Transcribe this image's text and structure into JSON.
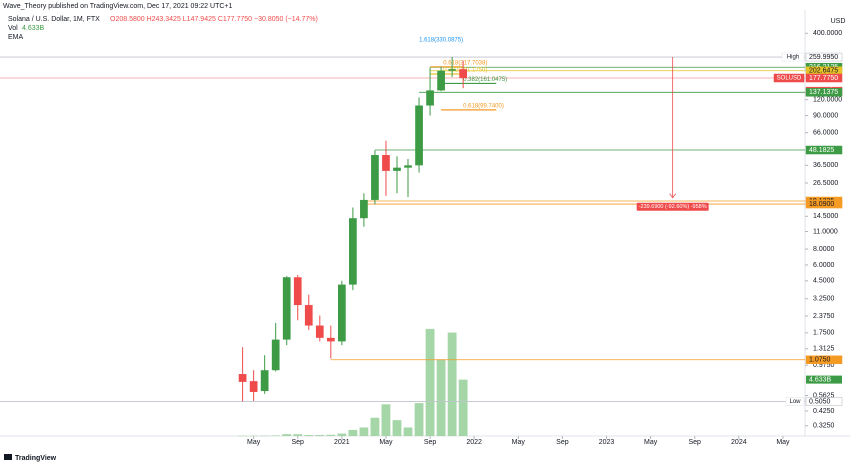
{
  "chart_data": {
    "type": "candlestick",
    "header": {
      "publisher": "Wave_Theory published on TradingView.com, Dec 17, 2021 09:22 UTC+1",
      "symbol": "Solana / U.S. Dollar, 1M, FTX",
      "ohlc": "O208.5800 H243.3425 L147.9425 C177.7750 −30.8050 (−14.77%)",
      "indicator": "EMA",
      "currency": "USD",
      "footer": "TradingView"
    },
    "x": [
      "2020-04",
      "2020-05",
      "2020-06",
      "2020-07",
      "2020-08",
      "2020-09",
      "2020-10",
      "2020-11",
      "2020-12",
      "2021-01",
      "2021-02",
      "2021-03",
      "2021-04",
      "2021-05",
      "2021-06",
      "2021-07",
      "2021-08",
      "2021-09",
      "2021-10",
      "2021-11",
      "2021-12"
    ],
    "open": [
      0.83,
      0.73,
      0.61,
      0.89,
      1.55,
      4.8,
      2.9,
      2.0,
      1.6,
      1.5,
      4.2,
      14,
      19.5,
      44,
      33,
      35,
      36.5,
      108,
      142,
      203,
      208.58
    ],
    "high": [
      1.35,
      0.89,
      1.17,
      2.1,
      4.9,
      5.0,
      3.5,
      2.4,
      2.0,
      4.5,
      17,
      22,
      48,
      57,
      43,
      41,
      125,
      215,
      218,
      259.995,
      243.3425
    ],
    "low": [
      0.505,
      0.51,
      0.58,
      0.87,
      1.4,
      2.2,
      1.85,
      1.5,
      1.1,
      1.4,
      3.8,
      12,
      18,
      21,
      22,
      20.5,
      32,
      90,
      140,
      181,
      147.9425
    ],
    "close": [
      0.72,
      0.6,
      0.89,
      1.55,
      4.8,
      2.9,
      2.0,
      1.6,
      1.5,
      4.2,
      14,
      19.5,
      44,
      33,
      35,
      36.5,
      108,
      142,
      203,
      208.58,
      177.775
    ],
    "up_color": "#3d9b45",
    "down_color": "#ef4b4b",
    "volume": {
      "name": "Vol",
      "values": [
        0.02,
        0.02,
        0.03,
        0.05,
        0.15,
        0.15,
        0.08,
        0.08,
        0.1,
        0.2,
        0.5,
        0.7,
        1.5,
        2.6,
        1.3,
        0.7,
        2.7,
        8.8,
        6.3,
        8.5,
        4.633
      ],
      "last_label": "4.633B",
      "color": "#a5d6a7",
      "axis": "y2"
    },
    "log_scale": true,
    "ylim": [
      0.27,
      610
    ],
    "y2lim": [
      0,
      35
    ],
    "yticks": [
      {
        "value": 400,
        "label": "400.0000"
      },
      {
        "value": 120,
        "label": "120.0000"
      },
      {
        "value": 90,
        "label": "90.0000"
      },
      {
        "value": 66,
        "label": "66.0000"
      },
      {
        "value": 36.5,
        "label": "36.5000"
      },
      {
        "value": 26.5,
        "label": "26.5000"
      },
      {
        "value": 14.5,
        "label": "14.5000"
      },
      {
        "value": 11,
        "label": "11.0000"
      },
      {
        "value": 8,
        "label": "8.0000"
      },
      {
        "value": 6,
        "label": "6.0000"
      },
      {
        "value": 4.5,
        "label": "4.5000"
      },
      {
        "value": 3.25,
        "label": "3.2500"
      },
      {
        "value": 2.375,
        "label": "2.3750"
      },
      {
        "value": 1.75,
        "label": "1.7500"
      },
      {
        "value": 1.3125,
        "label": "1.3125"
      },
      {
        "value": 0.975,
        "label": "0.9750"
      },
      {
        "value": 0.5625,
        "label": "0.5625"
      },
      {
        "value": 0.425,
        "label": "0.4250"
      },
      {
        "value": 0.325,
        "label": "0.3250"
      }
    ],
    "xlim": [
      "2018-06",
      "2024-07"
    ],
    "xticks": [
      {
        "value": "2020-05",
        "label": "May"
      },
      {
        "value": "2020-09",
        "label": "Sep"
      },
      {
        "value": "2021-01",
        "label": "2021"
      },
      {
        "value": "2021-05",
        "label": "May"
      },
      {
        "value": "2021-09",
        "label": "Sep"
      },
      {
        "value": "2022-01",
        "label": "2022"
      },
      {
        "value": "2022-05",
        "label": "May"
      },
      {
        "value": "2022-09",
        "label": "Sep"
      },
      {
        "value": "2023-01",
        "label": "2023"
      },
      {
        "value": "2023-05",
        "label": "May"
      },
      {
        "value": "2023-09",
        "label": "Sep"
      },
      {
        "value": "2024-01",
        "label": "2024"
      },
      {
        "value": "2024-05",
        "label": "May"
      }
    ],
    "levels": [
      {
        "value": 259.995,
        "color": "#c0c3cc",
        "start": "2018-06"
      },
      {
        "value": 216.2125,
        "color": "#3d9b45",
        "start": "2021-09"
      },
      {
        "value": 202.6475,
        "color": "#e6c229",
        "start": "2021-09"
      },
      {
        "value": 177.775,
        "color": "#ef9a9a",
        "start": "2018-06"
      },
      {
        "value": 137.1375,
        "color": "#3d9b45",
        "start": "2021-08"
      },
      {
        "value": 48.1825,
        "color": "#3d9b45",
        "start": "2021-04"
      },
      {
        "value": 19.1225,
        "color": "#f59a23",
        "start": "2021-03"
      },
      {
        "value": 18.09,
        "color": "#f59a23",
        "start": "2021-03"
      },
      {
        "value": 1.075,
        "color": "#f59a23",
        "start": "2020-12"
      },
      {
        "value": 0.505,
        "color": "#c0c3cc",
        "start": "2018-06"
      }
    ],
    "fibs": [
      {
        "value": 330.0875,
        "label": "1.618(330.0875)",
        "color": "#2196f3",
        "start": "2021-10",
        "end": "2021-10"
      },
      {
        "value": 217.7038,
        "label": "0.618(217.7038)",
        "color": "#f59a23",
        "start": "2021-09",
        "end": "2021-12"
      },
      {
        "value": 191.175,
        "label": "0.382(191.1750)",
        "color": "#e6c229",
        "start": "2021-09",
        "end": "2021-12"
      },
      {
        "value": 161.0475,
        "label": "0.382(161.0475)",
        "color": "#3d9b45",
        "start": "2021-10",
        "end": "2022-03"
      },
      {
        "value": 99.74,
        "label": "0.618(99.7400)",
        "color": "#f59a23",
        "start": "2021-10",
        "end": "2022-03"
      }
    ],
    "price_tags": [
      {
        "value": 259.995,
        "label": "259.9950",
        "color": "#ffffff",
        "text_color": "#131722",
        "note": "High"
      },
      {
        "value": 216.2125,
        "label": "216.2125",
        "color": "#3d9b45",
        "text_color": "#ffffff"
      },
      {
        "value": 202.6475,
        "label": "202.6475",
        "color": "#e6c229",
        "text_color": "#131722"
      },
      {
        "value": 177.775,
        "label": "177.7750",
        "color": "#ef4b4b",
        "text_color": "#ffffff",
        "note": "SOLUSD"
      },
      {
        "value": 140.16,
        "label": "140.16h",
        "color": "#ef4b4b",
        "text_color": "#ffffff"
      },
      {
        "value": 137.1375,
        "label": "137.1375",
        "color": "#3d9b45",
        "text_color": "#ffffff"
      },
      {
        "value": 48.1825,
        "label": "48.1825",
        "color": "#3d9b45",
        "text_color": "#ffffff"
      },
      {
        "value": 19.1225,
        "label": "19.1225",
        "color": "#f59a23",
        "text_color": "#131722"
      },
      {
        "value": 18.09,
        "label": "18.0900",
        "color": "#f59a23",
        "text_color": "#131722"
      },
      {
        "value": 1.075,
        "label": "1.0750",
        "color": "#f59a23",
        "text_color": "#131722"
      },
      {
        "value": 0.505,
        "label": "0.5050",
        "color": "#ffffff",
        "text_color": "#131722",
        "note": "Low"
      }
    ],
    "measure": {
      "label": "-239.6900 (-92.60%) -958%",
      "x": "2023-07",
      "from": 259.995,
      "to": 20.305,
      "color": "#ef4b4b"
    }
  }
}
